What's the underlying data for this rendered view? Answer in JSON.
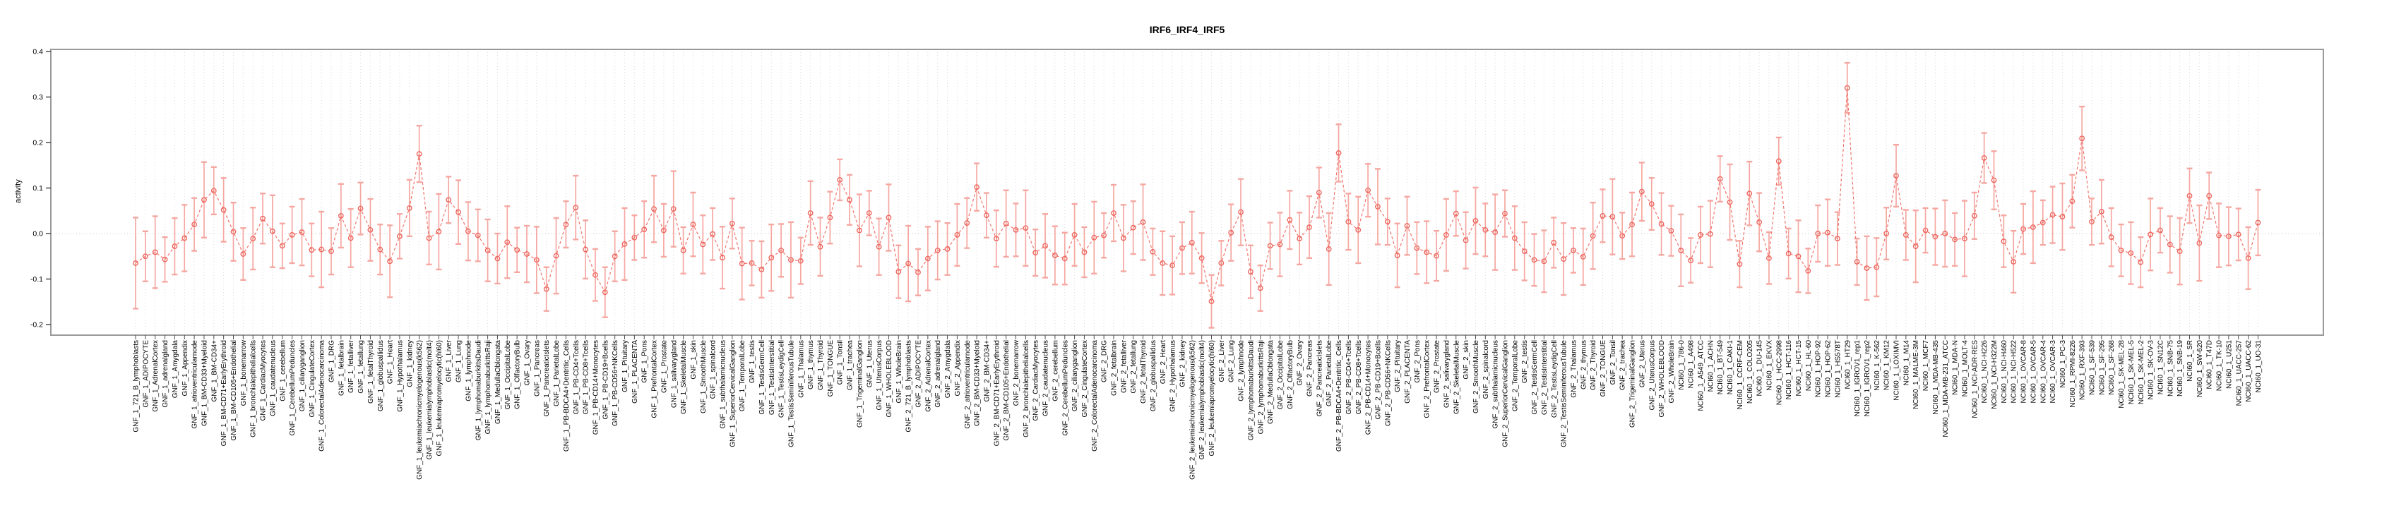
{
  "title": "IRF6_IRF4_IRF5",
  "colors": {
    "point": "#ed665e",
    "errorbar": "#f5a7a1",
    "connector": "#f0756d",
    "grid": "#dcdcdc",
    "zero_line": "#c9c9c9",
    "box": "#9a9a9a",
    "tick": "#4d4d4d",
    "text": "#000000",
    "background": "#ffffff"
  },
  "chart_data": {
    "type": "scatter",
    "title": "IRF6_IRF4_IRF5",
    "xlabel": "",
    "ylabel": "activity",
    "ylim": [
      -0.223,
      0.405
    ],
    "y_ticks": [
      "-0.2",
      "-0.1",
      "0.0",
      "0.1",
      "0.2",
      "0.3",
      "0.4"
    ],
    "grid": "vertical-dotted-per-category, dotted zero line",
    "legend": "none",
    "marker": "open-circle-with-error-bars, dashed connector line",
    "categories": [
      "GNF_1_721_B_lymphoblasts",
      "GNF_1_ADIPOCYTE",
      "GNF_1_AdrenalCortex",
      "GNF_1_adrenalgland",
      "GNF_1_Amygdala",
      "GNF_1_Appendix",
      "GNF_1_atrioventricularnode",
      "GNF_1_BM-CD33+Myeloid",
      "GNF_1_BM-CD34+",
      "GNF_1_BM-CD71+EarlyErythroid",
      "GNF_1_BM-CD105+Endothelial",
      "GNF_1_bonemarrow",
      "GNF_1_bronchialepithelialcells",
      "GNF_1_CardiacMyocytes",
      "GNF_1_caudatenucleus",
      "GNF_1_cerebellum",
      "GNF_1_CerebellumPeduncles",
      "GNF_1_ciliaryganglion",
      "GNF_1_CingulateCortex",
      "GNF_1_ColorectalAdenocarcinoma",
      "GNF_1_DRG",
      "GNF_1_fetalbrain",
      "GNF_1_fetalliver",
      "GNF_1_fetallung",
      "GNF_1_fetalThyroid",
      "GNF_1_globuspallidus",
      "GNF_1_Heart",
      "GNF_1_Hypothalamus",
      "GNF_1_kidney",
      "GNF_1_leukemiachronicmyelogenous(k562)",
      "GNF_1_leukemialymphoblastic(molt4)",
      "GNF_1_leukemiapromyelocytic(hl60)",
      "GNF_1_Liver",
      "GNF_1_Lung",
      "GNF_1_lymphnode",
      "GNF_1_lymphomaburkittsDaudi",
      "GNF_1_lymphomaburkittsRaji",
      "GNF_1_MedullaOblongata",
      "GNF_1_OccipitalLobe",
      "GNF_1_OlfactoryBulb",
      "GNF_1_Ovary",
      "GNF_1_Pancreas",
      "GNF_1_PancreaticIslets",
      "GNF_1_ParietalLobe",
      "GNF_1_PB-BDCA4+Dentritic_Cells",
      "GNF_1_PB-CD4+Tcells",
      "GNF_1_PB-CD8+Tcells",
      "GNF_1_PB-CD14+Monocytes",
      "GNF_1_PB-CD19+Bcells",
      "GNF_1_PB-CD56+NKCells",
      "GNF_1_Pituitary",
      "GNF_1_PLACENTA",
      "GNF_1_Pons",
      "GNF_1_PrefrontalCortex",
      "GNF_1_Prostate",
      "GNF_1_salivarygland",
      "GNF_1_SkeletalMuscle",
      "GNF_1_skin",
      "GNF_1_SmoothMuscle",
      "GNF_1_spinalcord",
      "GNF_1_subthalamicnucleus",
      "GNF_1_SuperiorCervicalGanglion",
      "GNF_1_TemporalLobe",
      "GNF_1_testis",
      "GNF_1_TestisGermCell",
      "GNF_1_TestisInterstitial",
      "GNF_1_TestisLeydigCell",
      "GNF_1_TestisSeminiferousTubule",
      "GNF_1_Thalamus",
      "GNF_1_thymus",
      "GNF_1_Thyroid",
      "GNF_1_TONGUE",
      "GNF_1_Tonsil",
      "GNF_1_trachea",
      "GNF_1_TrigeminalGanglion",
      "GNF_1_Uterus",
      "GNF_1_UterusCorpus",
      "GNF_1_WHOLEBLOOD",
      "GNF_1_WholeBrain",
      "GNF_2_721_B_lymphoblasts",
      "GNF_2_ADIPOCYTE",
      "GNF_2_AdrenalCortex",
      "GNF_2_adrenalgland",
      "GNF_2_Amygdala",
      "GNF_2_Appendix",
      "GNF_2_atrioventricularnode",
      "GNF_2_BM-CD33+Myeloid",
      "GNF_2_BM-CD34+",
      "GNF_2_BM-CD71+EarlyErythroid",
      "GNF_2_BM-CD105+Endothelial",
      "GNF_2_bonemarrow",
      "GNF_2_bronchialepithelialcells",
      "GNF_2_CardiacMyocytes",
      "GNF_2_caudatenucleus",
      "GNF_2_cerebellum",
      "GNF_2_CerebellumPeduncles",
      "GNF_2_ciliaryganglion",
      "GNF_2_CingulateCortex",
      "GNF_2_ColorectalAdenocarcinoma",
      "GNF_2_DRG",
      "GNF_2_fetalbrain",
      "GNF_2_fetalliver",
      "GNF_2_fetallung",
      "GNF_2_fetalThyroid",
      "GNF_2_globuspallidus",
      "GNF_2_Heart",
      "GNF_2_Hypothalamus",
      "GNF_2_kidney",
      "GNF_2_leukemiachronicmyelogenous(k562)",
      "GNF_2_leukemialymphoblastic(molt4)",
      "GNF_2_leukemiapromyelocytic(hl60)",
      "GNF_2_Liver",
      "GNF_2_Lung",
      "GNF_2_lymphnode",
      "GNF_2_lymphomaburkittsDaudi",
      "GNF_2_lymphomaburkittsRaji",
      "GNF_2_MedullaOblongata",
      "GNF_2_OccipitalLobe",
      "GNF_2_OlfactoryBulb",
      "GNF_2_Ovary",
      "GNF_2_Pancreas",
      "GNF_2_PancreaticIslets",
      "GNF_2_ParietalLobe",
      "GNF_2_PB-BDCA4+Dentritic_Cells",
      "GNF_2_PB-CD4+Tcells",
      "GNF_2_PB-CD8+Tcells",
      "GNF_2_PB-CD14+Monocytes",
      "GNF_2_PB-CD19+Bcells",
      "GNF_2_PB-CD56+NKCells",
      "GNF_2_Pituitary",
      "GNF_2_PLACENTA",
      "GNF_2_Pons",
      "GNF_2_PrefrontalCortex",
      "GNF_2_Prostate",
      "GNF_2_salivarygland",
      "GNF_2_SkeletalMuscle",
      "GNF_2_skin",
      "GNF_2_SmoothMuscle",
      "GNF_2_spinalcord",
      "GNF_2_subthalamicnucleus",
      "GNF_2_SuperiorCervicalGanglion",
      "GNF_2_TemporalLobe",
      "GNF_2_testis",
      "GNF_2_TestisGermCell",
      "GNF_2_TestisInterstitial",
      "GNF_2_TestisLeydigCell",
      "GNF_2_TestisSeminiferousTubule",
      "GNF_2_Thalamus",
      "GNF_2_thymus",
      "GNF_2_Thyroid",
      "GNF_2_TONGUE",
      "GNF_2_Tonsil",
      "GNF_2_trachea",
      "GNF_2_TrigeminalGanglion",
      "GNF_2_Uterus",
      "GNF_2_UterusCorpus",
      "GNF_2_WHOLEBLOOD",
      "GNF_2_WholeBrain",
      "NCI60_1_786-0",
      "NCI60_1_A498",
      "NCI60_1_A549_ATCC",
      "NCI60_1_ACHN",
      "NCI60_1_BT-549",
      "NCI60_1_CAKI-1",
      "NCI60_1_CCRF-CEM",
      "NCI60_1_COLO205",
      "NCI60_1_DU-145",
      "NCI60_1_EKVX",
      "NCI60_1_HCC-2998",
      "NCI60_1_HCT-116",
      "NCI60_1_HCT-15",
      "NCI60_1_HL-60",
      "NCI60_1_HOP-92",
      "NCI60_1_HOP-62",
      "NCI60_1_HS578T",
      "NCI60_1_HT29",
      "NCI60_1_IGROV1_rep1",
      "NCI60_1_IGROV1_rep2",
      "NCI60_1_K-562",
      "NCI60_1_KM12",
      "NCI60_1_LOXIMVI",
      "NCI60_1_M14",
      "NCI60_1_MALME-3M",
      "NCI60_1_MCF7",
      "NCI60_1_MDA-MB-435",
      "NCI60_1_MDA-MB-231_ATCC",
      "NCI60_1_MDA-N",
      "NCI60_1_MOLT-4",
      "NCI60_1_NCI-ADR-RES",
      "NCI60_1_NCI-H226",
      "NCI60_1_NCI-H322M",
      "NCI60_1_NCI-H460",
      "NCI60_1_NCI-H522",
      "NCI60_1_OVCAR-8",
      "NCI60_1_OVCAR-5",
      "NCI60_1_OVCAR-4",
      "NCI60_1_OVCAR-3",
      "NCI60_1_PC-3",
      "NCI60_1_RPMI-8226",
      "NCI60_1_RXF-393",
      "NCI60_1_SF-539",
      "NCI60_1_SF-295",
      "NCI60_1_SF-268",
      "NCI60_1_SK-MEL-28",
      "NCI60_1_SK-MEL-5",
      "NCI60_1_SK-MEL-2",
      "NCI60_1_SK-OV-3",
      "NCI60_1_SN12C",
      "NCI60_1_SNB-75",
      "NCI60_1_SNB-19",
      "NCI60_1_SR",
      "NCI60_1_SW-620",
      "NCI60_1_T47D",
      "NCI60_1_TK-10",
      "NCI60_1_U251",
      "NCI60_1_UACC-257",
      "NCI60_1_UACC-62",
      "NCI60_1_UO-31"
    ],
    "values": [
      -0.065,
      -0.05,
      -0.041,
      -0.057,
      -0.028,
      -0.01,
      0.02,
      0.074,
      0.094,
      0.052,
      0.004,
      -0.045,
      -0.011,
      0.033,
      0.005,
      -0.027,
      -0.003,
      0.003,
      -0.036,
      -0.035,
      -0.039,
      0.039,
      -0.01,
      0.055,
      0.008,
      -0.035,
      -0.061,
      -0.006,
      0.056,
      0.175,
      -0.01,
      0.004,
      0.074,
      0.047,
      0.005,
      -0.004,
      -0.037,
      -0.055,
      -0.019,
      -0.036,
      -0.045,
      -0.058,
      -0.122,
      -0.049,
      0.02,
      0.057,
      -0.035,
      -0.091,
      -0.129,
      -0.05,
      -0.023,
      -0.009,
      0.009,
      0.054,
      0.007,
      0.054,
      -0.037,
      0.02,
      -0.024,
      -0.001,
      -0.053,
      0.022,
      -0.066,
      -0.065,
      -0.079,
      -0.053,
      -0.037,
      -0.058,
      -0.06,
      0.045,
      -0.029,
      0.035,
      0.118,
      0.074,
      0.007,
      0.045,
      -0.029,
      0.035,
      -0.084,
      -0.066,
      -0.085,
      -0.055,
      -0.037,
      -0.034,
      -0.003,
      0.023,
      0.102,
      0.04,
      -0.011,
      0.022,
      0.008,
      0.012,
      -0.042,
      -0.027,
      -0.048,
      -0.055,
      -0.003,
      -0.041,
      -0.009,
      -0.004,
      0.045,
      -0.01,
      0.013,
      0.025,
      -0.04,
      -0.065,
      -0.07,
      -0.032,
      -0.02,
      -0.054,
      -0.149,
      -0.065,
      0.002,
      0.047,
      -0.084,
      -0.12,
      -0.027,
      -0.024,
      0.03,
      -0.011,
      0.014,
      0.09,
      -0.034,
      0.177,
      0.026,
      0.008,
      0.095,
      0.059,
      0.026,
      -0.048,
      0.017,
      -0.032,
      -0.041,
      -0.049,
      -0.003,
      0.044,
      -0.015,
      0.028,
      0.008,
      0.003,
      0.044,
      -0.01,
      -0.039,
      -0.058,
      -0.061,
      -0.02,
      -0.056,
      -0.037,
      -0.051,
      -0.005,
      0.039,
      0.037,
      -0.005,
      0.02,
      0.092,
      0.065,
      0.021,
      0.006,
      -0.037,
      -0.059,
      -0.003,
      -0.001,
      0.12,
      0.069,
      -0.067,
      0.088,
      0.025,
      -0.054,
      0.159,
      -0.044,
      -0.05,
      -0.082,
      0.0,
      0.002,
      -0.011,
      0.32,
      -0.062,
      -0.076,
      -0.074,
      0.0,
      0.127,
      -0.003,
      -0.028,
      0.007,
      -0.007,
      0.0,
      -0.013,
      -0.011,
      0.039,
      0.166,
      0.117,
      -0.017,
      -0.062,
      0.01,
      0.014,
      0.024,
      0.041,
      0.037,
      0.071,
      0.209,
      0.026,
      0.048,
      -0.008,
      -0.037,
      -0.043,
      -0.063,
      -0.002,
      0.007,
      -0.024,
      -0.039,
      0.083,
      -0.021,
      0.083,
      -0.004,
      -0.006,
      -0.002,
      -0.054,
      0.024
    ],
    "errors": [
      0.1,
      0.055,
      0.079,
      0.049,
      0.062,
      0.073,
      0.058,
      0.083,
      0.052,
      0.07,
      0.064,
      0.057,
      0.068,
      0.055,
      0.079,
      0.049,
      0.062,
      0.073,
      0.058,
      0.083,
      0.051,
      0.07,
      0.064,
      0.057,
      0.068,
      0.055,
      0.079,
      0.049,
      0.062,
      0.062,
      0.058,
      0.083,
      0.051,
      0.07,
      0.064,
      0.057,
      0.068,
      0.055,
      0.079,
      0.049,
      0.062,
      0.073,
      0.048,
      0.083,
      0.051,
      0.07,
      0.064,
      0.057,
      0.055,
      0.055,
      0.079,
      0.049,
      0.062,
      0.073,
      0.058,
      0.083,
      0.051,
      0.07,
      0.064,
      0.057,
      0.068,
      0.055,
      0.079,
      0.049,
      0.062,
      0.073,
      0.058,
      0.083,
      0.051,
      0.07,
      0.064,
      0.057,
      0.045,
      0.055,
      0.079,
      0.049,
      0.062,
      0.073,
      0.058,
      0.083,
      0.051,
      0.07,
      0.064,
      0.057,
      0.068,
      0.055,
      0.052,
      0.049,
      0.062,
      0.073,
      0.058,
      0.083,
      0.051,
      0.07,
      0.064,
      0.057,
      0.068,
      0.055,
      0.079,
      0.049,
      0.062,
      0.073,
      0.058,
      0.083,
      0.051,
      0.07,
      0.064,
      0.057,
      0.068,
      0.055,
      0.058,
      0.049,
      0.062,
      0.073,
      0.058,
      0.05,
      0.051,
      0.07,
      0.064,
      0.057,
      0.068,
      0.055,
      0.079,
      0.063,
      0.062,
      0.073,
      0.058,
      0.083,
      0.051,
      0.07,
      0.064,
      0.057,
      0.068,
      0.055,
      0.079,
      0.049,
      0.062,
      0.073,
      0.058,
      0.083,
      0.051,
      0.07,
      0.064,
      0.057,
      0.068,
      0.055,
      0.079,
      0.049,
      0.062,
      0.073,
      0.058,
      0.083,
      0.051,
      0.07,
      0.064,
      0.057,
      0.068,
      0.055,
      0.079,
      0.049,
      0.062,
      0.073,
      0.05,
      0.083,
      0.051,
      0.07,
      0.064,
      0.057,
      0.052,
      0.055,
      0.079,
      0.049,
      0.062,
      0.073,
      0.058,
      0.055,
      0.051,
      0.07,
      0.064,
      0.057,
      0.068,
      0.055,
      0.079,
      0.049,
      0.062,
      0.073,
      0.058,
      0.083,
      0.051,
      0.055,
      0.064,
      0.057,
      0.068,
      0.055,
      0.079,
      0.049,
      0.062,
      0.073,
      0.058,
      0.07,
      0.051,
      0.07,
      0.064,
      0.057,
      0.068,
      0.055,
      0.079,
      0.049,
      0.062,
      0.073,
      0.06,
      0.083,
      0.051,
      0.07,
      0.064,
      0.057,
      0.068,
      0.072
    ]
  }
}
